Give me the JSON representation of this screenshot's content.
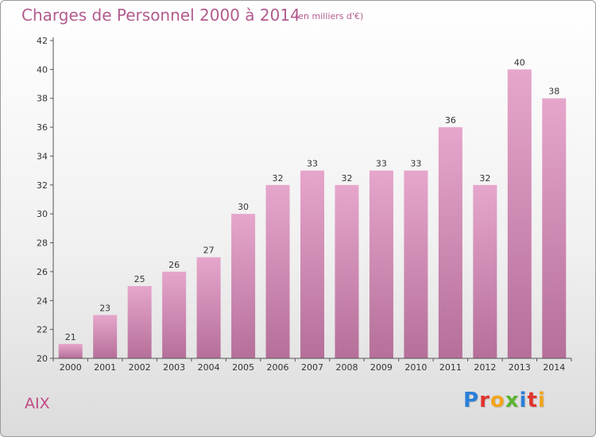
{
  "header": {
    "title": "Charges de Personnel 2000 à 2014",
    "subtitle": "(en milliers d'€)"
  },
  "footer": {
    "commune": "AIX",
    "logo_text": "Proxiti"
  },
  "colors": {
    "title": "#b25c8d",
    "bar_top": "#e6a6cc",
    "bar_bottom": "#b56f99",
    "logo": [
      "#2b7fd8",
      "#e0342c",
      "#f2a51c",
      "#5cb531",
      "#2b7fd8",
      "#e0342c",
      "#f2a51c"
    ]
  },
  "chart_data": {
    "type": "bar",
    "title": "Charges de Personnel 2000 à 2014",
    "subtitle": "(en milliers d'€)",
    "categories": [
      "2000",
      "2001",
      "2002",
      "2003",
      "2004",
      "2005",
      "2006",
      "2007",
      "2008",
      "2009",
      "2010",
      "2011",
      "2012",
      "2013",
      "2014"
    ],
    "values": [
      21,
      23,
      25,
      26,
      27,
      30,
      32,
      33,
      32,
      33,
      33,
      36,
      32,
      40,
      38
    ],
    "xlabel": "",
    "ylabel": "",
    "ylim": [
      20,
      42
    ],
    "yticks": [
      20,
      22,
      24,
      26,
      28,
      30,
      32,
      34,
      36,
      38,
      40,
      42
    ],
    "grid": false,
    "legend": "none",
    "data_labels": true
  }
}
